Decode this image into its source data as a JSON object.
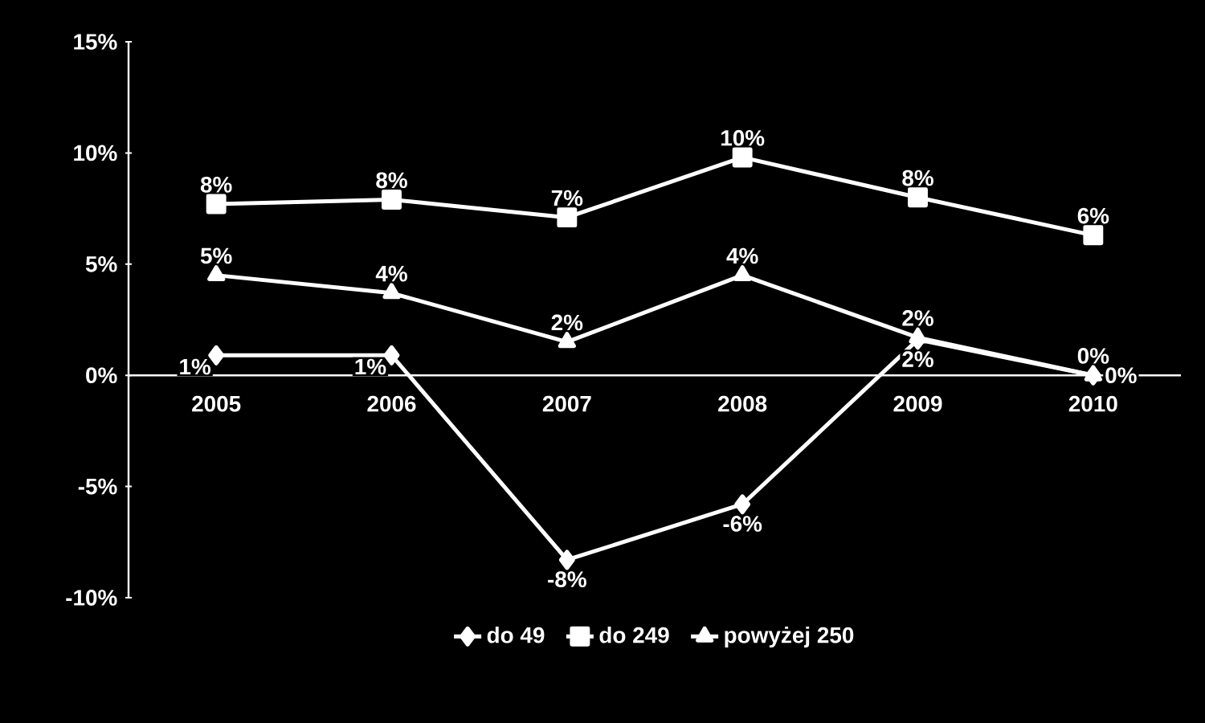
{
  "chart_data": {
    "type": "line",
    "categories": [
      "2005",
      "2006",
      "2007",
      "2008",
      "2009",
      "2010"
    ],
    "series": [
      {
        "name": "do 49",
        "color": "#ffffff",
        "marker": "diamond",
        "values": [
          0.9,
          0.9,
          -8.3,
          -5.8,
          1.6,
          0.0
        ],
        "value_labels": [
          "1%",
          "1%",
          "-8%",
          "-6%",
          "2%",
          "0%"
        ]
      },
      {
        "name": "do 249",
        "color": "#ffffff",
        "marker": "square",
        "values": [
          7.7,
          7.9,
          7.1,
          9.8,
          8.0,
          6.3
        ],
        "value_labels": [
          "8%",
          "8%",
          "7%",
          "10%",
          "8%",
          "6%"
        ]
      },
      {
        "name": "powyżej 250",
        "color": "#ffffff",
        "marker": "triangle",
        "values": [
          4.5,
          3.7,
          1.5,
          4.5,
          1.7,
          0.0
        ],
        "value_labels": [
          "5%",
          "4%",
          "2%",
          "4%",
          "2%",
          "0%"
        ]
      }
    ],
    "ylim": [
      -10,
      15
    ],
    "yticks": [
      {
        "value": -10,
        "label": "-10%"
      },
      {
        "value": -5,
        "label": "-5%"
      },
      {
        "value": 0,
        "label": "0%"
      },
      {
        "value": 5,
        "label": "5%"
      },
      {
        "value": 10,
        "label": "10%"
      },
      {
        "value": 15,
        "label": "15%"
      }
    ],
    "grid": false,
    "legend": "bottom",
    "line_style": "solid"
  }
}
